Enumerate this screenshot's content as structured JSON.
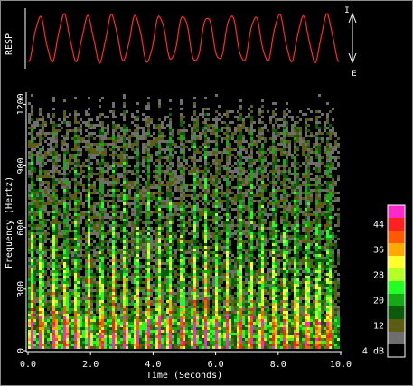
{
  "chart_data": [
    {
      "type": "line",
      "title": "",
      "ylabel": "RESP",
      "arrow_top_label": "I",
      "arrow_bottom_label": "E",
      "cycles": 13,
      "xlim": [
        0,
        10
      ],
      "series": [
        {
          "color": "#ff2a2a"
        }
      ]
    },
    {
      "type": "heatmap",
      "title": "",
      "xlabel": "Time (Seconds)",
      "ylabel": "Frequency (Hertz)",
      "xlim": [
        0,
        10
      ],
      "ylim": [
        0,
        1250
      ],
      "xticks": [
        {
          "value": 0,
          "label": "0.0"
        },
        {
          "value": 2,
          "label": "2.0"
        },
        {
          "value": 4,
          "label": "4.0"
        },
        {
          "value": 6,
          "label": "6.0"
        },
        {
          "value": 8,
          "label": "8.0"
        },
        {
          "value": 10,
          "label": "10.0"
        }
      ],
      "yticks": [
        {
          "value": 0,
          "label": "0"
        },
        {
          "value": 300,
          "label": "300"
        },
        {
          "value": 600,
          "label": "600"
        },
        {
          "value": 900,
          "label": "900"
        },
        {
          "value": 1200,
          "label": "1200"
        }
      ],
      "burst_times": [
        0.12,
        0.42,
        0.85,
        1.2,
        1.55,
        1.95,
        2.35,
        2.75,
        3.1,
        3.5,
        3.85,
        4.2,
        4.55,
        4.95,
        5.35,
        5.7,
        6.05,
        6.4,
        6.8,
        7.15,
        7.5,
        7.9,
        8.25,
        8.6,
        8.95,
        9.3,
        9.65
      ],
      "colorbar": {
        "unit": "dB",
        "levels": [
          {
            "db": 4,
            "color": "#000000"
          },
          {
            "db": 8,
            "color": "#6e6e6e"
          },
          {
            "db": 12,
            "color": "#5c5c12"
          },
          {
            "db": 16,
            "color": "#0a5c0a"
          },
          {
            "db": 20,
            "color": "#15aa15"
          },
          {
            "db": 24,
            "color": "#22ff22"
          },
          {
            "db": 28,
            "color": "#b5ff24"
          },
          {
            "db": 32,
            "color": "#ffff2a"
          },
          {
            "db": 36,
            "color": "#ffaa00"
          },
          {
            "db": 40,
            "color": "#ff5a00"
          },
          {
            "db": 44,
            "color": "#ff2020"
          },
          {
            "db": 48,
            "color": "#ff28c8"
          }
        ],
        "labels": [
          {
            "db": 4,
            "label": "4 dB"
          },
          {
            "db": 12,
            "label": "12"
          },
          {
            "db": 20,
            "label": "20"
          },
          {
            "db": 28,
            "label": "28"
          },
          {
            "db": 36,
            "label": "36"
          },
          {
            "db": 44,
            "label": "44"
          }
        ]
      }
    }
  ]
}
